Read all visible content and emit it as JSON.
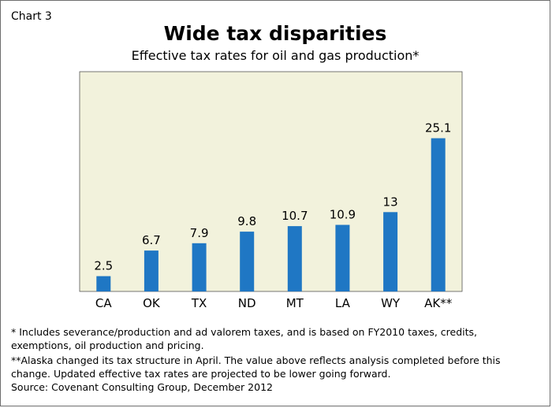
{
  "chart_label": "Chart 3",
  "chart_data": {
    "type": "bar",
    "title": "Wide tax disparities",
    "subtitle": "Effective tax rates for oil and gas production*",
    "categories": [
      "CA",
      "OK",
      "TX",
      "ND",
      "MT",
      "LA",
      "WY",
      "AK**"
    ],
    "values": [
      2.5,
      6.7,
      7.9,
      9.8,
      10.7,
      10.9,
      13,
      25.1
    ],
    "data_labels": [
      "2.5",
      "6.7",
      "7.9",
      "9.8",
      "10.7",
      "10.9",
      "13",
      "25.1"
    ],
    "xlabel": "",
    "ylabel": "",
    "ylim": [
      0,
      36
    ],
    "grid": false,
    "bar_color": "#1f77c4",
    "plot_background": "#f2f2dc"
  },
  "footnotes": {
    "note1": "* Includes severance/production and ad valorem taxes, and is based on FY2010 taxes, credits, exemptions, oil production and pricing.",
    "note2": "**Alaska changed its tax structure in April. The value above reflects analysis completed before this change. Updated effective tax rates are projected to be lower going forward.",
    "source": "Source: Covenant Consulting Group, December 2012"
  }
}
